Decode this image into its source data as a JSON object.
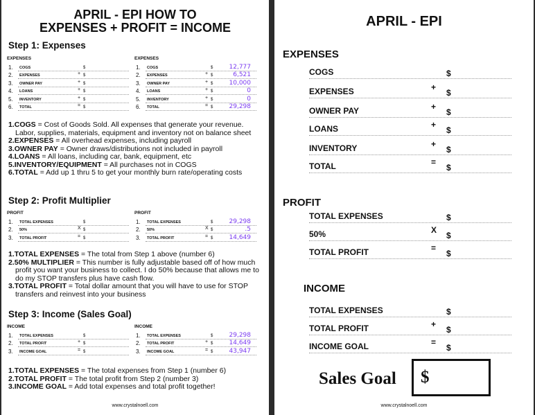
{
  "left": {
    "title_line1": "APRIL - EPI HOW TO",
    "title_line2": "EXPENSES + PROFIT = INCOME",
    "step1": "Step 1: Expenses",
    "step2": "Step 2: Profit Multiplier",
    "step3": "Step 3: Income (Sales Goal)",
    "expenses_header": "EXPENSES",
    "profit_header": "PROFIT",
    "income_header": "INCOME",
    "expense_rows": [
      {
        "n": "1.",
        "label": "COGS",
        "op": "",
        "value": "12,777"
      },
      {
        "n": "2.",
        "label": "EXPENSES",
        "op": "+",
        "value": "6,521"
      },
      {
        "n": "3.",
        "label": "OWNER PAY",
        "op": "+",
        "value": "10,000"
      },
      {
        "n": "4.",
        "label": "LOANS",
        "op": "+",
        "value": "0"
      },
      {
        "n": "5.",
        "label": "INVENTORY",
        "op": "+",
        "value": "0"
      },
      {
        "n": "6.",
        "label": "TOTAL",
        "op": "=",
        "value": "29,298"
      }
    ],
    "profit_rows": [
      {
        "n": "1.",
        "label": "TOTAL EXPENSES",
        "op": "",
        "value": "29,298"
      },
      {
        "n": "2.",
        "label": "50%",
        "op": "X",
        "value": ".5"
      },
      {
        "n": "3.",
        "label": "TOTAL PROFIT",
        "op": "=",
        "value": "14,649"
      }
    ],
    "income_rows": [
      {
        "n": "1.",
        "label": "TOTAL EXPENSES",
        "op": "",
        "value": "29,298"
      },
      {
        "n": "2.",
        "label": "TOTAL PROFIT",
        "op": "+",
        "value": "14,649"
      },
      {
        "n": "3.",
        "label": "INCOME GOAL",
        "op": "=",
        "value": "43,947"
      }
    ],
    "dollar": "$",
    "notes1": [
      {
        "k": "1.COGS",
        "t": " = Cost of Goods Sold. All expenses that generate your revenue. Labor, supplies, materials, equipment and inventory not on balance sheet"
      },
      {
        "k": "2.EXPENSES",
        "t": " = All overhead expenses, including payroll"
      },
      {
        "k": "3.OWNER PAY",
        "t": " = Owner draws/distributions not included in payroll"
      },
      {
        "k": "4.LOANS",
        "t": " = All loans, including car, bank, equipment, etc"
      },
      {
        "k": "5.INVENTORY/EQUIPMENT",
        "t": " = All purchases not in COGS"
      },
      {
        "k": "6.TOTAL",
        "t": " = Add up 1 thru 5 to get your monthly burn rate/operating costs"
      }
    ],
    "notes2": [
      {
        "k": "1.TOTAL EXPENSES",
        "t": " = The total from Step 1 above (number 6)"
      },
      {
        "k": "2.50% MULTIPLIER",
        "t": " = This number is fully adjustable based off of how much profit you want your business to collect. I do 50% because that allows me to do my STOP transfers plus have cash flow."
      },
      {
        "k": "3.TOTAL PROFIT",
        "t": " = Total dollar amount that you will have to use for STOP transfers and reinvest into your business"
      }
    ],
    "notes3": [
      {
        "k": "1.TOTAL EXPENSES",
        "t": " = The total expenses from Step 1 (number 6)"
      },
      {
        "k": "2.TOTAL PROFIT",
        "t": " = The total profit from Step 2 (number 3)"
      },
      {
        "k": "3.INCOME GOAL",
        "t": " = Add total expenses and total profit together!"
      }
    ],
    "footer": "www.crystalnoell.com"
  },
  "right": {
    "title": "APRIL - EPI",
    "expenses": "EXPENSES",
    "profit": "PROFIT",
    "income": "INCOME",
    "expense_rows": [
      {
        "label": "COGS",
        "op": ""
      },
      {
        "label": "EXPENSES",
        "op": "+"
      },
      {
        "label": "OWNER PAY",
        "op": "+"
      },
      {
        "label": "LOANS",
        "op": "+"
      },
      {
        "label": "INVENTORY",
        "op": "+"
      },
      {
        "label": "TOTAL",
        "op": "="
      }
    ],
    "profit_rows": [
      {
        "label": "TOTAL EXPENSES",
        "op": ""
      },
      {
        "label": "50%",
        "op": "X"
      },
      {
        "label": "TOTAL PROFIT",
        "op": "="
      }
    ],
    "income_rows": [
      {
        "label": "TOTAL EXPENSES",
        "op": ""
      },
      {
        "label": "TOTAL PROFIT",
        "op": "+"
      },
      {
        "label": "INCOME GOAL",
        "op": "="
      }
    ],
    "dollar": "$",
    "sales_goal": "Sales Goal",
    "sales_goal_value": "$",
    "footer": "www.crystalnoell.com"
  }
}
